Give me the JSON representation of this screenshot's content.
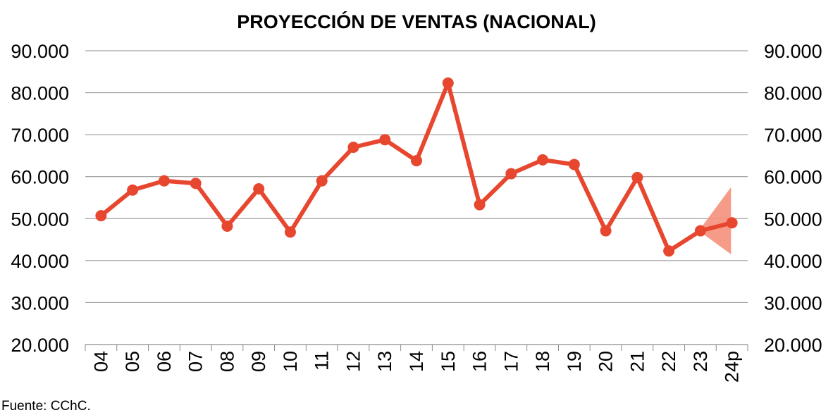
{
  "chart_data": {
    "type": "line",
    "title": "PROYECCIÓN DE VENTAS (NACIONAL)",
    "categories": [
      "04",
      "05",
      "06",
      "07",
      "08",
      "09",
      "10",
      "11",
      "12",
      "13",
      "14",
      "15",
      "16",
      "17",
      "18",
      "19",
      "20",
      "21",
      "22",
      "23",
      "24p"
    ],
    "series": [
      {
        "values": [
          50700,
          56800,
          59000,
          58400,
          48200,
          57100,
          46800,
          59000,
          67000,
          68800,
          63800,
          82300,
          53300,
          60700,
          64000,
          62900,
          47100,
          59800,
          42300,
          47100,
          49000
        ]
      }
    ],
    "forecast_band": {
      "from_category": "23",
      "to_category": "24p",
      "start_value": 47100,
      "low": 41500,
      "high": 57500
    },
    "ylim": [
      20000,
      90000
    ],
    "yticks": [
      "20.000",
      "30.000",
      "40.000",
      "50.000",
      "60.000",
      "70.000",
      "80.000",
      "90.000"
    ],
    "ytick_values": [
      20000,
      30000,
      40000,
      50000,
      60000,
      70000,
      80000,
      90000
    ],
    "secondary_yaxis": true,
    "grid": true,
    "legend": "none",
    "xlabel": "",
    "ylabel": "",
    "colors": {
      "line": "#e8472f",
      "band": "#f4907a",
      "grid": "#8c8c8c",
      "axis": "#8c8c8c"
    }
  },
  "source_note": "Fuente:  CChC."
}
